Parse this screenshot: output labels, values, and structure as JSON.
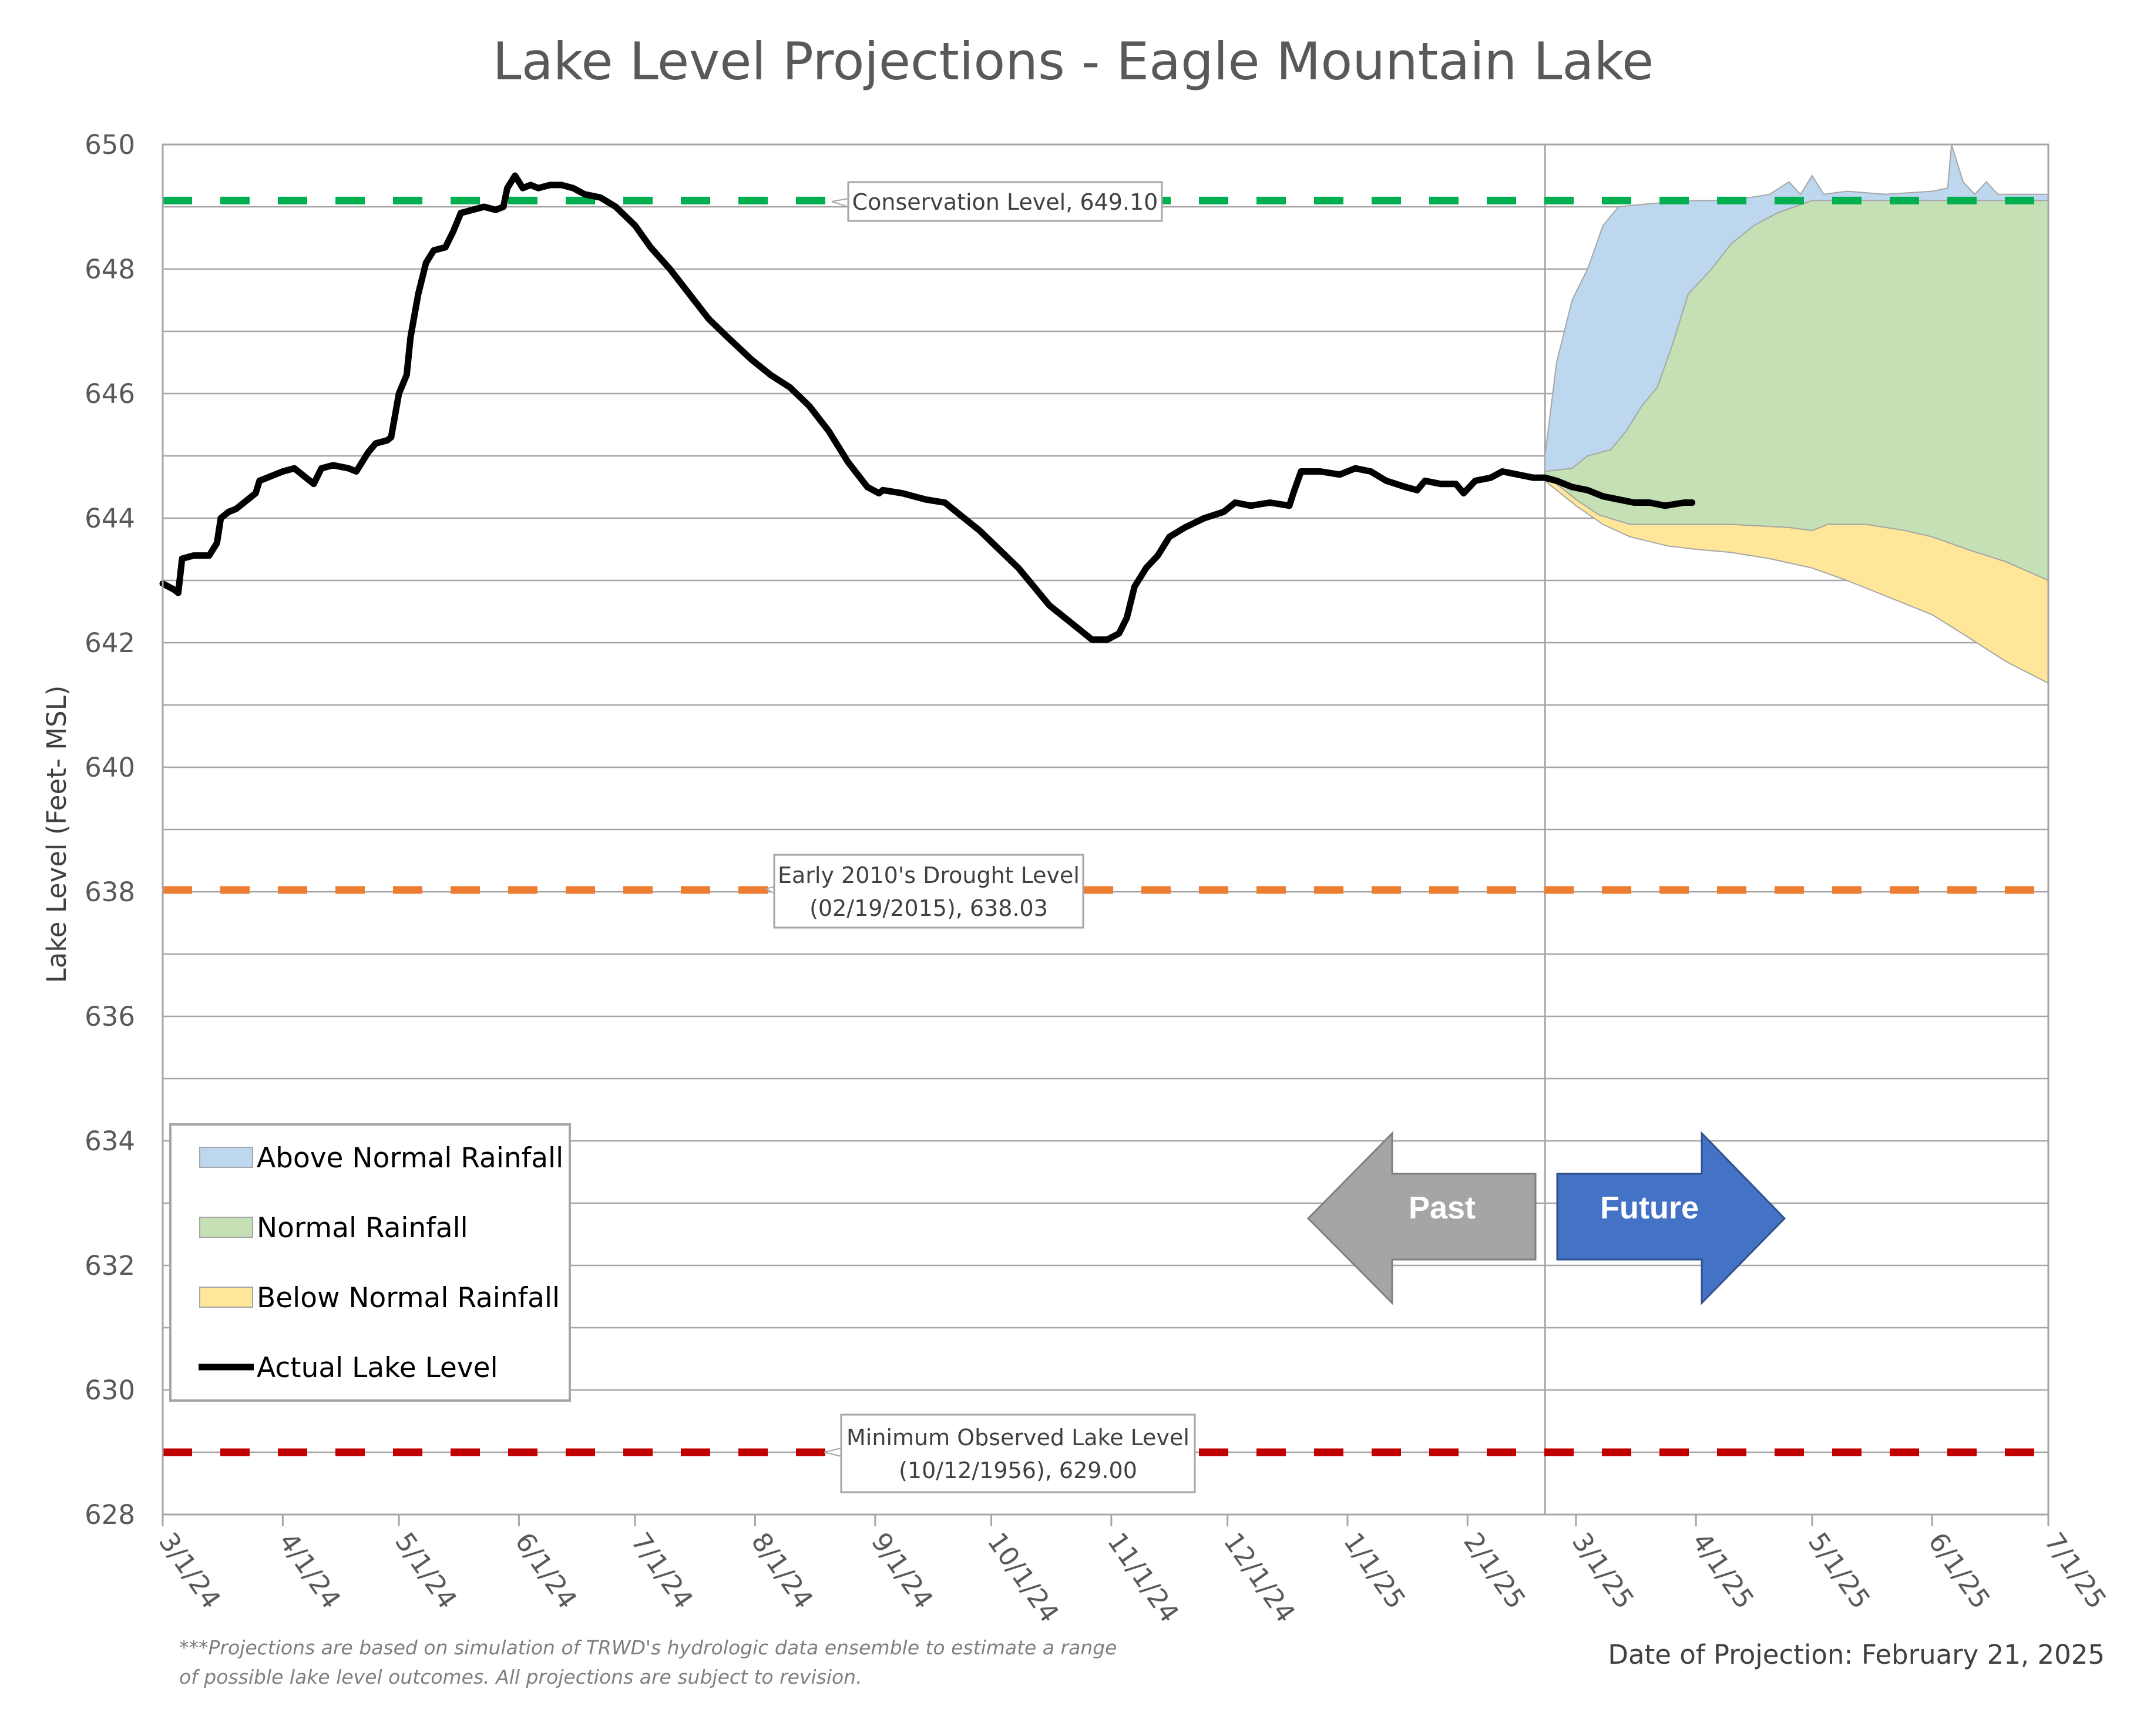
{
  "chart_data": {
    "type": "area",
    "title": "Lake Level Projections - Eagle Mountain Lake",
    "ylabel": "Lake Level (Feet- MSL)",
    "xlabel": "",
    "ylim": [
      628,
      650
    ],
    "yticks": [
      628,
      630,
      632,
      634,
      636,
      638,
      640,
      642,
      644,
      646,
      648,
      650
    ],
    "xlim": [
      "2024-03-01",
      "2025-07-01"
    ],
    "xticks": [
      {
        "date": "2024-03-01",
        "label": "3/1/24"
      },
      {
        "date": "2024-04-01",
        "label": "4/1/24"
      },
      {
        "date": "2024-05-01",
        "label": "5/1/24"
      },
      {
        "date": "2024-06-01",
        "label": "6/1/24"
      },
      {
        "date": "2024-07-01",
        "label": "7/1/24"
      },
      {
        "date": "2024-08-01",
        "label": "8/1/24"
      },
      {
        "date": "2024-09-01",
        "label": "9/1/24"
      },
      {
        "date": "2024-10-01",
        "label": "10/1/24"
      },
      {
        "date": "2024-11-01",
        "label": "11/1/24"
      },
      {
        "date": "2024-12-01",
        "label": "12/1/24"
      },
      {
        "date": "2025-01-01",
        "label": "1/1/25"
      },
      {
        "date": "2025-02-01",
        "label": "2/1/25"
      },
      {
        "date": "2025-03-01",
        "label": "3/1/25"
      },
      {
        "date": "2025-04-01",
        "label": "4/1/25"
      },
      {
        "date": "2025-05-01",
        "label": "5/1/25"
      },
      {
        "date": "2025-06-01",
        "label": "6/1/25"
      },
      {
        "date": "2025-07-01",
        "label": "7/1/25"
      }
    ],
    "grid": true,
    "legend_position": "bottom-left",
    "projection_date": "2025-02-21",
    "series": [
      {
        "name": "Above Normal Rainfall",
        "color": "#bdd7ee",
        "upper": [
          [
            "2025-02-21",
            645.0
          ],
          [
            "2025-02-24",
            646.5
          ],
          [
            "2025-02-28",
            647.5
          ],
          [
            "2025-03-04",
            648.0
          ],
          [
            "2025-03-08",
            648.7
          ],
          [
            "2025-03-12",
            649.0
          ],
          [
            "2025-03-20",
            649.05
          ],
          [
            "2025-04-01",
            649.1
          ],
          [
            "2025-04-10",
            649.1
          ],
          [
            "2025-04-20",
            649.2
          ],
          [
            "2025-04-25",
            649.4
          ],
          [
            "2025-04-28",
            649.2
          ],
          [
            "2025-05-01",
            649.5
          ],
          [
            "2025-05-04",
            649.2
          ],
          [
            "2025-05-10",
            649.25
          ],
          [
            "2025-05-20",
            649.2
          ],
          [
            "2025-06-01",
            649.25
          ],
          [
            "2025-06-05",
            649.3
          ],
          [
            "2025-06-06",
            650.0
          ],
          [
            "2025-06-09",
            649.4
          ],
          [
            "2025-06-12",
            649.2
          ],
          [
            "2025-06-15",
            649.4
          ],
          [
            "2025-06-18",
            649.2
          ],
          [
            "2025-07-01",
            649.2
          ]
        ],
        "lower": [
          [
            "2025-02-21",
            644.75
          ],
          [
            "2025-02-28",
            644.8
          ],
          [
            "2025-03-04",
            645.0
          ],
          [
            "2025-03-10",
            645.1
          ],
          [
            "2025-03-14",
            645.4
          ],
          [
            "2025-03-18",
            645.8
          ],
          [
            "2025-03-22",
            646.1
          ],
          [
            "2025-03-26",
            646.8
          ],
          [
            "2025-03-30",
            647.6
          ],
          [
            "2025-04-05",
            648.0
          ],
          [
            "2025-04-10",
            648.4
          ],
          [
            "2025-04-16",
            648.7
          ],
          [
            "2025-04-22",
            648.9
          ],
          [
            "2025-05-01",
            649.1
          ],
          [
            "2025-07-01",
            649.1
          ]
        ]
      },
      {
        "name": "Normal Rainfall",
        "color": "#c5e0b4",
        "upper": [
          [
            "2025-02-21",
            644.75
          ],
          [
            "2025-02-28",
            644.8
          ],
          [
            "2025-03-04",
            645.0
          ],
          [
            "2025-03-10",
            645.1
          ],
          [
            "2025-03-14",
            645.4
          ],
          [
            "2025-03-18",
            645.8
          ],
          [
            "2025-03-22",
            646.1
          ],
          [
            "2025-03-26",
            646.8
          ],
          [
            "2025-03-30",
            647.6
          ],
          [
            "2025-04-05",
            648.0
          ],
          [
            "2025-04-10",
            648.4
          ],
          [
            "2025-04-16",
            648.7
          ],
          [
            "2025-04-22",
            648.9
          ],
          [
            "2025-05-01",
            649.1
          ],
          [
            "2025-07-01",
            649.1
          ]
        ],
        "lower": [
          [
            "2025-02-21",
            644.7
          ],
          [
            "2025-03-01",
            644.3
          ],
          [
            "2025-03-07",
            644.05
          ],
          [
            "2025-03-15",
            643.9
          ],
          [
            "2025-03-25",
            643.9
          ],
          [
            "2025-04-10",
            643.9
          ],
          [
            "2025-04-25",
            643.85
          ],
          [
            "2025-05-01",
            643.8
          ],
          [
            "2025-05-05",
            643.9
          ],
          [
            "2025-05-15",
            643.9
          ],
          [
            "2025-05-25",
            643.8
          ],
          [
            "2025-06-01",
            643.7
          ],
          [
            "2025-06-10",
            643.5
          ],
          [
            "2025-06-20",
            643.3
          ],
          [
            "2025-07-01",
            643.0
          ]
        ]
      },
      {
        "name": "Below Normal Rainfall",
        "color": "#ffe699",
        "upper": [
          [
            "2025-02-21",
            644.7
          ],
          [
            "2025-03-01",
            644.3
          ],
          [
            "2025-03-07",
            644.05
          ],
          [
            "2025-03-15",
            643.9
          ],
          [
            "2025-03-25",
            643.9
          ],
          [
            "2025-04-10",
            643.9
          ],
          [
            "2025-04-25",
            643.85
          ],
          [
            "2025-05-01",
            643.8
          ],
          [
            "2025-05-05",
            643.9
          ],
          [
            "2025-05-15",
            643.9
          ],
          [
            "2025-05-25",
            643.8
          ],
          [
            "2025-06-01",
            643.7
          ],
          [
            "2025-06-10",
            643.5
          ],
          [
            "2025-06-20",
            643.3
          ],
          [
            "2025-07-01",
            643.0
          ]
        ],
        "lower": [
          [
            "2025-02-21",
            644.6
          ],
          [
            "2025-03-01",
            644.2
          ],
          [
            "2025-03-08",
            643.9
          ],
          [
            "2025-03-15",
            643.7
          ],
          [
            "2025-03-25",
            643.55
          ],
          [
            "2025-04-01",
            643.5
          ],
          [
            "2025-04-10",
            643.45
          ],
          [
            "2025-04-20",
            643.35
          ],
          [
            "2025-05-01",
            643.2
          ],
          [
            "2025-05-10",
            643.0
          ],
          [
            "2025-05-20",
            642.75
          ],
          [
            "2025-06-01",
            642.45
          ],
          [
            "2025-06-10",
            642.1
          ],
          [
            "2025-06-20",
            641.7
          ],
          [
            "2025-07-01",
            641.35
          ]
        ]
      },
      {
        "name": "Actual Lake Level",
        "color": "#000000",
        "points": [
          [
            "2024-03-01",
            642.95
          ],
          [
            "2024-03-04",
            642.85
          ],
          [
            "2024-03-05",
            642.8
          ],
          [
            "2024-03-06",
            643.35
          ],
          [
            "2024-03-09",
            643.4
          ],
          [
            "2024-03-13",
            643.4
          ],
          [
            "2024-03-15",
            643.6
          ],
          [
            "2024-03-16",
            644.0
          ],
          [
            "2024-03-18",
            644.1
          ],
          [
            "2024-03-20",
            644.15
          ],
          [
            "2024-03-23",
            644.3
          ],
          [
            "2024-03-25",
            644.4
          ],
          [
            "2024-03-26",
            644.6
          ],
          [
            "2024-03-28",
            644.65
          ],
          [
            "2024-04-01",
            644.75
          ],
          [
            "2024-04-04",
            644.8
          ],
          [
            "2024-04-06",
            644.7
          ],
          [
            "2024-04-09",
            644.55
          ],
          [
            "2024-04-11",
            644.8
          ],
          [
            "2024-04-14",
            644.85
          ],
          [
            "2024-04-18",
            644.8
          ],
          [
            "2024-04-20",
            644.75
          ],
          [
            "2024-04-23",
            645.05
          ],
          [
            "2024-04-25",
            645.2
          ],
          [
            "2024-04-28",
            645.25
          ],
          [
            "2024-04-29",
            645.3
          ],
          [
            "2024-05-01",
            646.0
          ],
          [
            "2024-05-03",
            646.3
          ],
          [
            "2024-05-04",
            646.9
          ],
          [
            "2024-05-06",
            647.6
          ],
          [
            "2024-05-08",
            648.1
          ],
          [
            "2024-05-10",
            648.3
          ],
          [
            "2024-05-13",
            648.35
          ],
          [
            "2024-05-15",
            648.6
          ],
          [
            "2024-05-17",
            648.9
          ],
          [
            "2024-05-20",
            648.95
          ],
          [
            "2024-05-23",
            649.0
          ],
          [
            "2024-05-26",
            648.95
          ],
          [
            "2024-05-28",
            649.0
          ],
          [
            "2024-05-29",
            649.3
          ],
          [
            "2024-05-31",
            649.5
          ],
          [
            "2024-06-02",
            649.3
          ],
          [
            "2024-06-04",
            649.35
          ],
          [
            "2024-06-06",
            649.3
          ],
          [
            "2024-06-09",
            649.35
          ],
          [
            "2024-06-12",
            649.35
          ],
          [
            "2024-06-15",
            649.3
          ],
          [
            "2024-06-18",
            649.2
          ],
          [
            "2024-06-22",
            649.15
          ],
          [
            "2024-06-26",
            649.0
          ],
          [
            "2024-07-01",
            648.7
          ],
          [
            "2024-07-05",
            648.35
          ],
          [
            "2024-07-10",
            648.0
          ],
          [
            "2024-07-15",
            647.6
          ],
          [
            "2024-07-20",
            647.2
          ],
          [
            "2024-07-25",
            646.9
          ],
          [
            "2024-07-31",
            646.55
          ],
          [
            "2024-08-05",
            646.3
          ],
          [
            "2024-08-10",
            646.1
          ],
          [
            "2024-08-15",
            645.8
          ],
          [
            "2024-08-20",
            645.4
          ],
          [
            "2024-08-25",
            644.9
          ],
          [
            "2024-08-30",
            644.5
          ],
          [
            "2024-09-02",
            644.4
          ],
          [
            "2024-09-03",
            644.45
          ],
          [
            "2024-09-08",
            644.4
          ],
          [
            "2024-09-14",
            644.3
          ],
          [
            "2024-09-19",
            644.25
          ],
          [
            "2024-09-23",
            644.05
          ],
          [
            "2024-09-28",
            643.8
          ],
          [
            "2024-10-03",
            643.5
          ],
          [
            "2024-10-08",
            643.2
          ],
          [
            "2024-10-12",
            642.9
          ],
          [
            "2024-10-16",
            642.6
          ],
          [
            "2024-10-20",
            642.4
          ],
          [
            "2024-10-24",
            642.2
          ],
          [
            "2024-10-27",
            642.05
          ],
          [
            "2024-10-31",
            642.05
          ],
          [
            "2024-11-03",
            642.15
          ],
          [
            "2024-11-05",
            642.4
          ],
          [
            "2024-11-07",
            642.9
          ],
          [
            "2024-11-10",
            643.2
          ],
          [
            "2024-11-13",
            643.4
          ],
          [
            "2024-11-16",
            643.7
          ],
          [
            "2024-11-20",
            643.85
          ],
          [
            "2024-11-25",
            644.0
          ],
          [
            "2024-11-30",
            644.1
          ],
          [
            "2024-12-03",
            644.25
          ],
          [
            "2024-12-07",
            644.2
          ],
          [
            "2024-12-12",
            644.25
          ],
          [
            "2024-12-17",
            644.2
          ],
          [
            "2024-12-18",
            644.4
          ],
          [
            "2024-12-20",
            644.75
          ],
          [
            "2024-12-25",
            644.75
          ],
          [
            "2024-12-30",
            644.7
          ],
          [
            "2025-01-03",
            644.8
          ],
          [
            "2025-01-07",
            644.75
          ],
          [
            "2025-01-11",
            644.6
          ],
          [
            "2025-01-16",
            644.5
          ],
          [
            "2025-01-19",
            644.45
          ],
          [
            "2025-01-21",
            644.6
          ],
          [
            "2025-01-25",
            644.55
          ],
          [
            "2025-01-29",
            644.55
          ],
          [
            "2025-01-31",
            644.4
          ],
          [
            "2025-02-03",
            644.6
          ],
          [
            "2025-02-07",
            644.65
          ],
          [
            "2025-02-10",
            644.75
          ],
          [
            "2025-02-14",
            644.7
          ],
          [
            "2025-02-18",
            644.65
          ],
          [
            "2025-02-21",
            644.65
          ],
          [
            "2025-02-24",
            644.6
          ],
          [
            "2025-02-28",
            644.5
          ],
          [
            "2025-03-04",
            644.45
          ],
          [
            "2025-03-08",
            644.35
          ],
          [
            "2025-03-12",
            644.3
          ],
          [
            "2025-03-16",
            644.25
          ],
          [
            "2025-03-20",
            644.25
          ],
          [
            "2025-03-24",
            644.2
          ],
          [
            "2025-03-29",
            644.25
          ],
          [
            "2025-03-31",
            644.25
          ]
        ]
      }
    ],
    "reference_lines": [
      {
        "name": "Conservation Level",
        "value": 649.1,
        "color": "#00b050",
        "label_lines": [
          "Conservation Level, 649.10"
        ]
      },
      {
        "name": "Early 2010's Drought Level",
        "value": 638.03,
        "color": "#ed7d31",
        "label_lines": [
          "Early 2010's Drought Level",
          "(02/19/2015), 638.03"
        ]
      },
      {
        "name": "Minimum Observed Lake Level",
        "value": 629.0,
        "color": "#c00000",
        "label_lines": [
          "Minimum Observed Lake Level",
          "(10/12/1956), 629.00"
        ]
      }
    ],
    "arrows": {
      "past_label": "Past",
      "future_label": "Future",
      "past_color": "#a5a5a5",
      "future_color": "#4472c4"
    }
  },
  "footnote": "***Projections are based on simulation of TRWD's hydrologic data ensemble to estimate a range of possible lake level outcomes.  All projections are subject to revision.",
  "projection_label": "Date of Projection: February 21, 2025"
}
